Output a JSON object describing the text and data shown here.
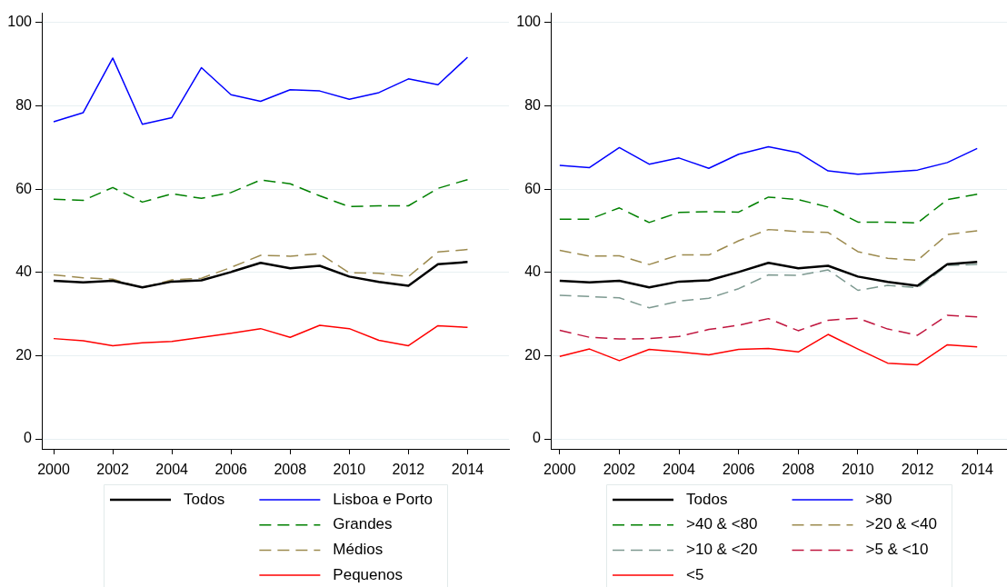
{
  "chart_data": [
    {
      "type": "line",
      "x": [
        2000,
        2001,
        2002,
        2003,
        2004,
        2005,
        2006,
        2007,
        2008,
        2009,
        2010,
        2011,
        2012,
        2013,
        2014
      ],
      "xlim": [
        1999.6,
        2015.4
      ],
      "xticks": [
        2000,
        2002,
        2004,
        2006,
        2008,
        2010,
        2012,
        2014
      ],
      "ylim": [
        -2.4,
        102.4
      ],
      "yticks": [
        0,
        20,
        40,
        60,
        80,
        100
      ],
      "grid": "y",
      "legend": "bottom",
      "marker": "none",
      "series": [
        {
          "name": "Todos",
          "color": "#000000",
          "line_style": "solid",
          "values": [
            38.0,
            37.6,
            38.0,
            36.4,
            37.8,
            38.1,
            40.1,
            42.3,
            41.0,
            41.6,
            39.0,
            37.7,
            36.8,
            42.0,
            42.5
          ]
        },
        {
          "name": "Lisboa e Porto",
          "color": "#0000ff",
          "line_style": "solid",
          "values": [
            76.2,
            78.4,
            91.5,
            75.6,
            77.2,
            89.2,
            82.7,
            81.1,
            83.9,
            83.6,
            81.6,
            83.2,
            86.5,
            85.1,
            91.7
          ]
        },
        {
          "name": "Grandes",
          "color": "#008000",
          "line_style": "dashed",
          "values": [
            57.6,
            57.3,
            60.4,
            56.9,
            58.9,
            57.8,
            59.2,
            62.2,
            61.3,
            58.4,
            55.8,
            56.0,
            56.0,
            60.2,
            62.3
          ]
        },
        {
          "name": "Médios",
          "color": "#9c8a4e",
          "line_style": "dashed",
          "values": [
            39.4,
            38.7,
            38.4,
            36.3,
            38.2,
            38.6,
            41.2,
            44.1,
            43.9,
            44.5,
            39.9,
            39.8,
            39.0,
            44.9,
            45.5
          ]
        },
        {
          "name": "Pequenos",
          "color": "#ff0000",
          "line_style": "solid",
          "values": [
            24.1,
            23.6,
            22.4,
            23.1,
            23.4,
            24.4,
            25.4,
            26.5,
            24.4,
            27.3,
            26.5,
            23.7,
            22.4,
            27.2,
            26.8
          ]
        }
      ]
    },
    {
      "type": "line",
      "x": [
        2000,
        2001,
        2002,
        2003,
        2004,
        2005,
        2006,
        2007,
        2008,
        2009,
        2010,
        2011,
        2012,
        2013,
        2014
      ],
      "xlim": [
        1999.7,
        2015.0
      ],
      "xticks": [
        2000,
        2002,
        2004,
        2006,
        2008,
        2010,
        2012,
        2014
      ],
      "ylim": [
        -2.4,
        102.4
      ],
      "yticks": [
        0,
        20,
        40,
        60,
        80,
        100
      ],
      "grid": "y",
      "legend": "bottom",
      "marker": "none",
      "series": [
        {
          "name": "Todos",
          "color": "#000000",
          "line_style": "solid",
          "values": [
            38.0,
            37.6,
            38.0,
            36.4,
            37.8,
            38.1,
            40.1,
            42.3,
            41.0,
            41.6,
            39.0,
            37.7,
            36.8,
            42.0,
            42.5
          ]
        },
        {
          "name": ">80",
          "color": "#0000ff",
          "line_style": "solid",
          "values": [
            65.7,
            65.2,
            70.0,
            66.0,
            67.5,
            65.0,
            68.4,
            70.2,
            68.8,
            64.4,
            63.6,
            64.1,
            64.6,
            66.4,
            69.8
          ]
        },
        {
          "name": ">40 & <80",
          "color": "#008000",
          "line_style": "dashed",
          "values": [
            52.8,
            52.8,
            55.5,
            52.0,
            54.4,
            54.6,
            54.5,
            58.1,
            57.5,
            55.7,
            52.1,
            52.1,
            51.9,
            57.5,
            58.8
          ]
        },
        {
          "name": ">20 & <40",
          "color": "#9c8a4e",
          "line_style": "dashed",
          "values": [
            45.3,
            43.9,
            44.0,
            41.9,
            44.2,
            44.2,
            47.6,
            50.3,
            49.8,
            49.6,
            45.0,
            43.4,
            42.9,
            49.1,
            50.0
          ]
        },
        {
          "name": ">10 & <20",
          "color": "#7d9990",
          "line_style": "dashed",
          "values": [
            34.5,
            34.2,
            33.9,
            31.5,
            33.1,
            33.8,
            36.1,
            39.4,
            39.3,
            40.6,
            35.7,
            36.9,
            36.3,
            41.7,
            41.9
          ]
        },
        {
          "name": ">5 & <10",
          "color": "#c0163f",
          "line_style": "dashed",
          "values": [
            26.1,
            24.4,
            24.0,
            24.1,
            24.6,
            26.3,
            27.3,
            28.9,
            26.0,
            28.5,
            29.0,
            26.4,
            24.9,
            29.7,
            29.3
          ]
        },
        {
          "name": "<5",
          "color": "#ff0000",
          "line_style": "solid",
          "values": [
            19.8,
            21.6,
            18.8,
            21.5,
            20.9,
            20.2,
            21.5,
            21.7,
            20.9,
            25.1,
            21.6,
            18.2,
            17.8,
            22.6,
            22.1
          ]
        }
      ]
    }
  ]
}
